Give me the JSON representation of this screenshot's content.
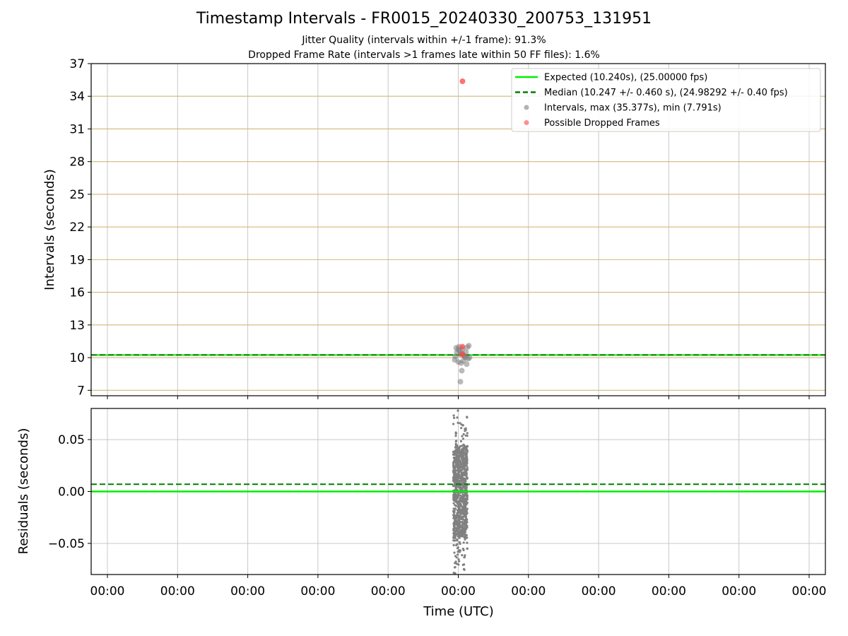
{
  "chart_data": [
    {
      "type": "scatter",
      "title": "Timestamp Intervals - FR0015_20240330_200753_131951",
      "subtitle_1": "Jitter Quality (intervals within +/-1 frame): 91.3%",
      "subtitle_2": "Dropped Frame Rate (intervals >1 frames late within 50 FF files): 1.6%",
      "ylabel": "Intervals (seconds)",
      "ylim": [
        6.5,
        37
      ],
      "yticks": [
        "7",
        "10",
        "13",
        "16",
        "19",
        "22",
        "25",
        "28",
        "31",
        "34",
        "37"
      ],
      "grid": true,
      "legend_position": "top-right",
      "legend": [
        {
          "label": "Expected (10.240s), (25.00000 fps)",
          "style": "solid-line",
          "color": "#00ee00"
        },
        {
          "label": "Median (10.247 +/- 0.460 s), (24.98292 +/- 0.40 fps)",
          "style": "dashed-line",
          "color": "#007f00"
        },
        {
          "label": "Intervals, max (35.377s), min (7.791s)",
          "style": "marker",
          "color": "#808080"
        },
        {
          "label": "Possible Dropped Frames",
          "style": "marker",
          "color": "#ff4444"
        }
      ],
      "expected": 10.24,
      "median": 10.247,
      "series": [
        {
          "name": "Intervals, max (35.377s), min (7.791s)",
          "color": "#808080",
          "points": [
            [
              4.97,
              10.9
            ],
            [
              5.0,
              10.75
            ],
            [
              5.02,
              10.6
            ],
            [
              5.05,
              10.4
            ],
            [
              5.08,
              10.2
            ],
            [
              5.1,
              10.0
            ],
            [
              4.95,
              9.8
            ],
            [
              5.0,
              9.6
            ],
            [
              5.04,
              9.5
            ],
            [
              5.07,
              9.7
            ],
            [
              5.12,
              9.4
            ],
            [
              4.98,
              10.5
            ],
            [
              5.03,
              10.3
            ],
            [
              5.06,
              10.8
            ],
            [
              5.09,
              10.1
            ],
            [
              5.11,
              10.5
            ],
            [
              5.13,
              10.95
            ],
            [
              5.15,
              11.1
            ],
            [
              5.01,
              11.0
            ],
            [
              4.96,
              10.1
            ],
            [
              5.16,
              10.0
            ],
            [
              5.14,
              9.9
            ],
            [
              5.05,
              8.8
            ],
            [
              5.03,
              7.791
            ]
          ]
        },
        {
          "name": "Possible Dropped Frames",
          "color": "#ff4444",
          "points": [
            [
              5.06,
              35.377
            ],
            [
              5.06,
              11.0
            ],
            [
              5.06,
              10.3
            ]
          ]
        }
      ]
    },
    {
      "type": "scatter",
      "ylabel": "Residuals (seconds)",
      "ylim": [
        -0.08,
        0.08
      ],
      "yticks": [
        "−0.05",
        "0.00",
        "0.05"
      ],
      "xlabel": "Time (UTC)",
      "xticks": [
        "00:00",
        "00:00",
        "00:00",
        "00:00",
        "00:00",
        "00:00",
        "00:00",
        "00:00",
        "00:00",
        "00:00",
        "00:00"
      ],
      "expected": 0.0,
      "median": 0.007,
      "points_color": "#808080",
      "residual_center_x": 5.03,
      "residual_range": [
        -0.079,
        0.078
      ]
    }
  ]
}
